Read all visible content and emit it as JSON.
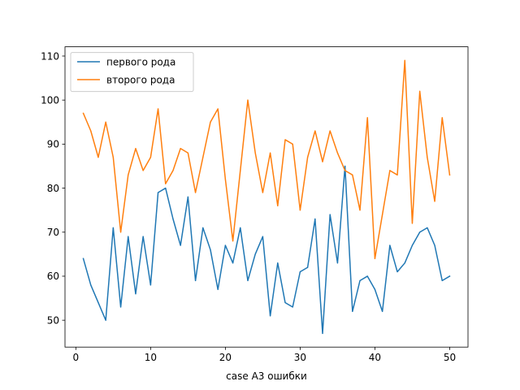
{
  "chart_data": {
    "type": "line",
    "xlabel": "case A3 ошибки",
    "ylabel": "",
    "xlim": [
      -1.45,
      52.45
    ],
    "ylim": [
      43.9,
      112.1
    ],
    "xticks": [
      0,
      10,
      20,
      30,
      40,
      50
    ],
    "yticks": [
      50,
      60,
      70,
      80,
      90,
      100,
      110
    ],
    "grid": false,
    "legend_position": "upper-left",
    "x": [
      1,
      2,
      3,
      4,
      5,
      6,
      7,
      8,
      9,
      10,
      11,
      12,
      13,
      14,
      15,
      16,
      17,
      18,
      19,
      20,
      21,
      22,
      23,
      24,
      25,
      26,
      27,
      28,
      29,
      30,
      31,
      32,
      33,
      34,
      35,
      36,
      37,
      38,
      39,
      40,
      41,
      42,
      43,
      44,
      45,
      46,
      47,
      48,
      49,
      50
    ],
    "series": [
      {
        "name": "первого рода",
        "color": "#1f77b4",
        "values": [
          64,
          58,
          54,
          50,
          71,
          53,
          69,
          56,
          69,
          58,
          79,
          80,
          73,
          67,
          78,
          59,
          71,
          66,
          57,
          67,
          63,
          71,
          59,
          65,
          69,
          51,
          63,
          54,
          53,
          61,
          62,
          73,
          47,
          74,
          63,
          85,
          52,
          59,
          60,
          57,
          52,
          67,
          61,
          63,
          67,
          70,
          71,
          67,
          59,
          60
        ]
      },
      {
        "name": "второго рода",
        "color": "#ff7f0e",
        "values": [
          97,
          93,
          87,
          95,
          87,
          70,
          83,
          89,
          84,
          87,
          98,
          81,
          84,
          89,
          88,
          79,
          87,
          95,
          98,
          82,
          68,
          84,
          100,
          88,
          79,
          88,
          76,
          91,
          90,
          75,
          87,
          93,
          86,
          93,
          88,
          84,
          83,
          75,
          96,
          64,
          74,
          84,
          83,
          109,
          72,
          102,
          87,
          77,
          96,
          83
        ]
      }
    ]
  }
}
